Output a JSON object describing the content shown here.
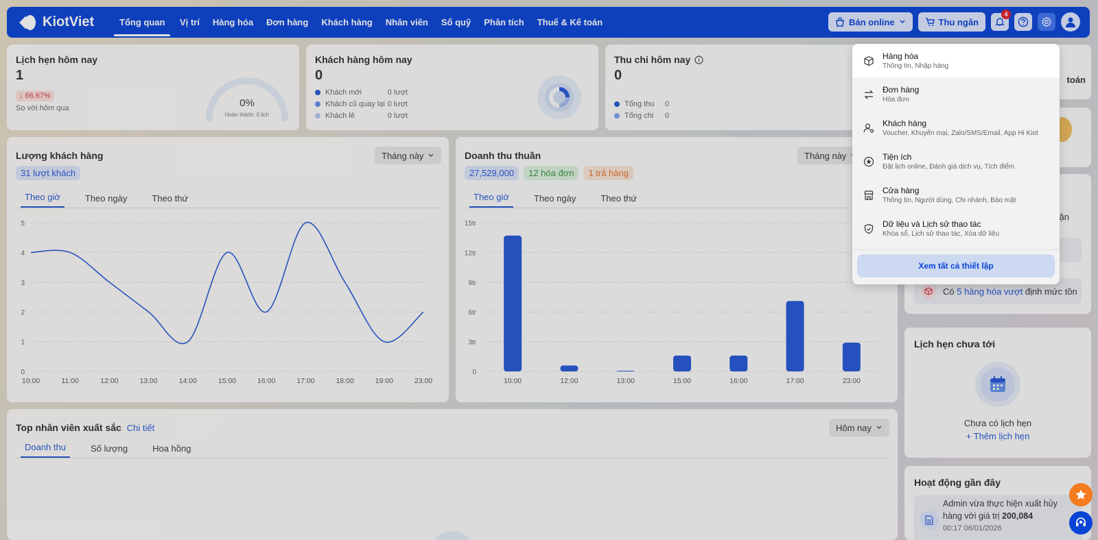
{
  "brand": {
    "name": "KiotViet"
  },
  "nav": {
    "items": [
      "Tổng quan",
      "Vị trí",
      "Hàng hóa",
      "Đơn hàng",
      "Khách hàng",
      "Nhân viên",
      "Sổ quỹ",
      "Phân tích",
      "Thuế & Kế toán"
    ]
  },
  "topbar": {
    "online_label": "Bán online",
    "cashier_label": "Thu ngân",
    "notification_count": "4"
  },
  "appointments_today": {
    "title": "Lịch hẹn hôm nay",
    "value": "1",
    "change": "66.67%",
    "compare": "So với hôm qua",
    "gauge_percent": "0%",
    "gauge_caption": "Hoàn thành: 0 lịch"
  },
  "customers_today": {
    "title": "Khách hàng hôm nay",
    "value": "0",
    "rows": [
      {
        "label": "Khách mới",
        "value": "0 lượt",
        "color": "#0a44d6"
      },
      {
        "label": "Khách cũ quay lại",
        "value": "0 lượt",
        "color": "#4f86f0"
      },
      {
        "label": "Khách lẻ",
        "value": "0 lượt",
        "color": "#a9c3f3"
      }
    ]
  },
  "cashflow_today": {
    "title": "Thu chi hôm nay",
    "value": "0",
    "rows": [
      {
        "label": "Tổng thu",
        "value": "0",
        "color": "#0a44d6"
      },
      {
        "label": "Tổng chi",
        "value": "0",
        "color": "#6f9df2"
      }
    ]
  },
  "customer_traffic": {
    "title": "Lượng khách hàng",
    "period": "Tháng này",
    "badge": "31 lượt khách",
    "tabs": [
      "Theo giờ",
      "Theo ngày",
      "Theo thứ"
    ]
  },
  "net_revenue": {
    "title": "Doanh thu thuần",
    "period": "Tháng này",
    "badges": [
      "27,529,000",
      "12 hóa đơn",
      "1 trả hàng"
    ],
    "tabs": [
      "Theo giờ",
      "Theo ngày",
      "Theo thứ"
    ]
  },
  "top_staff": {
    "title": "Top nhân viên xuất sắc",
    "link": "Chi tiết",
    "period": "Hôm nay",
    "tabs": [
      "Doanh thu",
      "Số lượng",
      "Hoa hồng"
    ]
  },
  "right_panel": {
    "partial_text_1": "toán",
    "partial_text_2": "ận",
    "stock_prefix": "Có ",
    "stock_link": "5 hàng hóa vượt",
    "stock_suffix": " định mức tồn"
  },
  "upcoming": {
    "title": "Lịch hẹn chưa tới",
    "empty": "Chưa có lịch hẹn",
    "add": "+ Thêm lịch hẹn"
  },
  "activity": {
    "title": "Hoạt động gần đây",
    "line1": "Admin vừa thực hiện xuất hủy",
    "line2_prefix": "hàng với giá trị ",
    "line2_value": "200,084",
    "time": "00:17 06/01/2026"
  },
  "settings_menu": {
    "items": [
      {
        "title": "Hàng hóa",
        "sub": "Thông tin, Nhập hàng",
        "icon": "box-icon"
      },
      {
        "title": "Đơn hàng",
        "sub": "Hóa đơn",
        "icon": "swap-icon"
      },
      {
        "title": "Khách hàng",
        "sub": "Voucher, Khuyến mại, Zalo/SMS/Email, App Hi Kiot",
        "icon": "user-gear-icon"
      },
      {
        "title": "Tiện ích",
        "sub": "Đặt lịch online, Đánh giá dịch vụ, Tích điểm",
        "icon": "star-circle-icon"
      },
      {
        "title": "Cửa hàng",
        "sub": "Thông tin, Người dùng, Chi nhánh, Bảo mật",
        "icon": "store-icon"
      },
      {
        "title": "Dữ liệu và Lịch sử thao tác",
        "sub": "Khóa sổ, Lịch sử thao tác, Xóa dữ liệu",
        "icon": "shield-check-icon"
      }
    ],
    "all_label": "Xem tất cả thiết lập"
  },
  "chart_data": [
    {
      "type": "line",
      "title": "Lượng khách hàng",
      "x": [
        "10:00",
        "11:00",
        "12:00",
        "13:00",
        "14:00",
        "15:00",
        "16:00",
        "17:00",
        "18:00",
        "19:00",
        "23:00"
      ],
      "values": [
        4,
        4,
        3,
        2,
        1,
        4,
        2,
        5,
        3,
        1,
        2
      ],
      "ylim": [
        0,
        5
      ],
      "yticks": [
        "0",
        "1",
        "2",
        "3",
        "4",
        "5"
      ],
      "color": "#0a44d6",
      "grid": true
    },
    {
      "type": "bar",
      "title": "Doanh thu thuần",
      "categories": [
        "10:00",
        "12:00",
        "13:00",
        "15:00",
        "16:00",
        "17:00",
        "23:00"
      ],
      "values": [
        13.7,
        0.6,
        0.05,
        1.6,
        1.6,
        7.1,
        2.9
      ],
      "unit": "tr",
      "ylim": [
        0,
        15
      ],
      "yticks": [
        "0",
        "3tr",
        "6tr",
        "9tr",
        "12tr",
        "15tr"
      ],
      "color": "#0a44d6",
      "grid": true
    }
  ]
}
